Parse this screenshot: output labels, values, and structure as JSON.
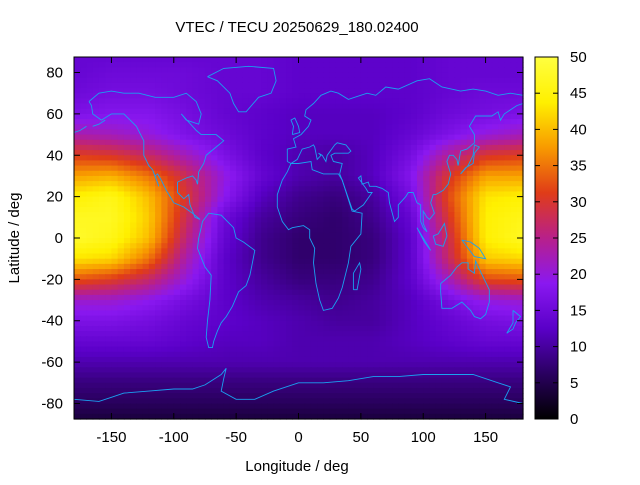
{
  "chart_data": {
    "type": "heatmap",
    "title": "VTEC / TECU 20250629_180.02400",
    "xlabel": "Longitude / deg",
    "ylabel": "Latitude / deg",
    "xlim": [
      -180,
      180
    ],
    "ylim": [
      -87.5,
      87.5
    ],
    "x_ticks": [
      -150,
      -100,
      -50,
      0,
      50,
      100,
      150
    ],
    "y_ticks": [
      -80,
      -60,
      -40,
      -20,
      0,
      20,
      40,
      60,
      80
    ],
    "colorbar": {
      "range": [
        0,
        50
      ],
      "ticks": [
        0,
        5,
        10,
        15,
        20,
        25,
        30,
        35,
        40,
        45,
        50
      ],
      "palette": [
        "#000000",
        "#2a0060",
        "#5a00c8",
        "#8a18f0",
        "#b8208a",
        "#e03c18",
        "#f89a00",
        "#fff000",
        "#ffff40"
      ]
    },
    "coastline_color": "#1aa0f0",
    "grid": false,
    "grid_resolution": {
      "lon_step": 5,
      "lat_step": 2.5
    },
    "lon": [
      -180,
      -150,
      -120,
      -90,
      -60,
      -30,
      0,
      30,
      60,
      90,
      120,
      150,
      180
    ],
    "lat": [
      87.5,
      80,
      70,
      60,
      50,
      40,
      30,
      20,
      10,
      0,
      -10,
      -20,
      -30,
      -40,
      -50,
      -60,
      -70,
      -80,
      -87.5
    ],
    "vtec": [
      [
        14,
        14,
        14,
        14,
        14,
        14,
        13,
        13,
        13,
        13,
        14,
        14,
        14
      ],
      [
        14,
        15,
        15,
        15,
        14,
        14,
        13,
        13,
        13,
        13,
        14,
        14,
        14
      ],
      [
        15,
        16,
        16,
        15,
        14,
        14,
        13,
        13,
        13,
        13,
        14,
        15,
        15
      ],
      [
        17,
        18,
        18,
        16,
        14,
        13,
        12,
        12,
        12,
        13,
        15,
        16,
        17
      ],
      [
        23,
        22,
        20,
        17,
        15,
        13,
        12,
        12,
        12,
        14,
        17,
        20,
        22
      ],
      [
        31,
        30,
        27,
        22,
        17,
        13,
        11,
        10,
        12,
        16,
        24,
        30,
        31
      ],
      [
        38,
        39,
        35,
        28,
        20,
        14,
        11,
        10,
        12,
        18,
        30,
        38,
        38
      ],
      [
        44,
        46,
        40,
        30,
        19,
        12,
        9,
        8,
        10,
        16,
        32,
        43,
        44
      ],
      [
        47,
        47,
        41,
        28,
        15,
        10,
        8,
        7,
        9,
        14,
        30,
        44,
        46
      ],
      [
        48,
        46,
        40,
        26,
        14,
        9,
        7,
        7,
        8,
        13,
        28,
        44,
        47
      ],
      [
        43,
        42,
        35,
        23,
        13,
        9,
        7,
        7,
        8,
        13,
        27,
        41,
        42
      ],
      [
        33,
        31,
        27,
        20,
        13,
        10,
        8,
        8,
        9,
        13,
        22,
        32,
        33
      ],
      [
        21,
        21,
        19,
        16,
        13,
        11,
        10,
        9,
        10,
        12,
        16,
        20,
        21
      ],
      [
        17,
        17,
        16,
        14,
        13,
        12,
        11,
        10,
        10,
        12,
        14,
        16,
        17
      ],
      [
        14,
        14,
        14,
        13,
        12,
        12,
        11,
        11,
        11,
        12,
        13,
        14,
        14
      ],
      [
        11,
        11,
        11,
        11,
        11,
        11,
        11,
        11,
        11,
        11,
        11,
        11,
        11
      ],
      [
        8,
        8,
        8,
        8,
        8,
        8,
        8,
        8,
        8,
        8,
        8,
        8,
        8
      ],
      [
        6,
        6,
        6,
        6,
        6,
        6,
        6,
        6,
        6,
        6,
        6,
        6,
        6
      ],
      [
        4,
        4,
        4,
        4,
        4,
        4,
        4,
        4,
        4,
        4,
        4,
        4,
        4
      ]
    ]
  }
}
